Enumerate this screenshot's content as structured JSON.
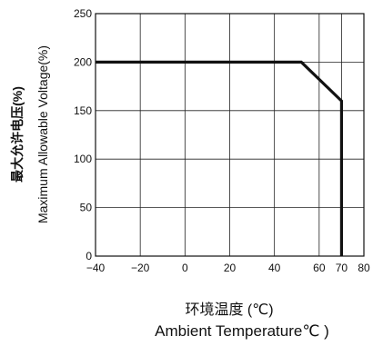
{
  "chart_data": {
    "type": "line",
    "ylabel_cn": "最大允许电压(%)",
    "ylabel_en": "Maximum Allowable Voltage(%)",
    "xlabel_cn": "环境温度 (℃)",
    "xlabel_en": "Ambient Temperature℃ )",
    "xlim": [
      -40,
      80
    ],
    "ylim": [
      0,
      250
    ],
    "grid": true,
    "x_ticks": [
      {
        "value": -40,
        "label": "−40"
      },
      {
        "value": -20,
        "label": "−20"
      },
      {
        "value": 0,
        "label": "0"
      },
      {
        "value": 20,
        "label": "20"
      },
      {
        "value": 40,
        "label": "40"
      },
      {
        "value": 60,
        "label": "60"
      },
      {
        "value": 70,
        "label": "70"
      },
      {
        "value": 80,
        "label": "80"
      }
    ],
    "x_grid": [
      -40,
      -20,
      0,
      20,
      40,
      60,
      70,
      80
    ],
    "y_ticks": [
      {
        "value": 0,
        "label": "0"
      },
      {
        "value": 50,
        "label": "50"
      },
      {
        "value": 100,
        "label": "100"
      },
      {
        "value": 150,
        "label": "150"
      },
      {
        "value": 200,
        "label": "200"
      },
      {
        "value": 250,
        "label": "250"
      }
    ],
    "series": [
      {
        "x": [
          -40,
          52,
          70,
          70
        ],
        "y": [
          200,
          200,
          160,
          0
        ]
      }
    ]
  }
}
